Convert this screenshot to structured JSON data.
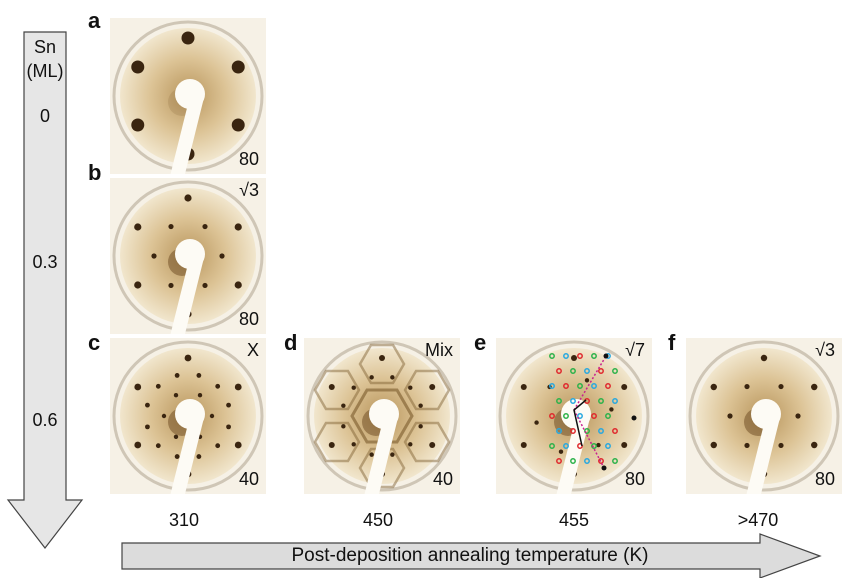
{
  "coverage_axis": {
    "label_line1": "Sn",
    "label_line2": "(ML)",
    "values": [
      "0",
      "0.3",
      "0.6"
    ]
  },
  "temperature_axis": {
    "label": "Post-deposition annealing temperature (K)",
    "values": [
      "310",
      "450",
      "455",
      ">470"
    ]
  },
  "panels": [
    {
      "letter": "a",
      "energy": "80",
      "reconstruction": ""
    },
    {
      "letter": "b",
      "energy": "80",
      "reconstruction": "√3"
    },
    {
      "letter": "c",
      "energy": "40",
      "reconstruction": "X"
    },
    {
      "letter": "d",
      "energy": "40",
      "reconstruction": "Mix"
    },
    {
      "letter": "e",
      "energy": "80",
      "reconstruction": "√7"
    },
    {
      "letter": "f",
      "energy": "80",
      "reconstruction": "√3"
    }
  ],
  "colors": {
    "arrow_fill": "#e6e6e6",
    "pattern_background": "#e9d8b4",
    "spot": "#3a2510",
    "overlay_green": "#2bb24a",
    "overlay_blue": "#27a8e0",
    "overlay_red": "#e0282d",
    "overlay_magenta": "#c8218f"
  }
}
